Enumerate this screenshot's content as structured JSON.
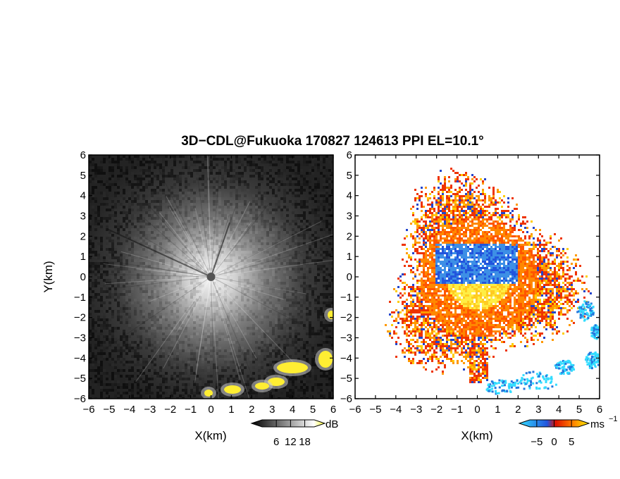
{
  "chart_data": {
    "title": "3D−CDL@Fukuoka 170827 124613 PPI EL=10.1°",
    "panels": [
      {
        "id": "reflectivity",
        "type": "heatmap",
        "xlabel": "X(km)",
        "ylabel": "Y(km)",
        "xlim": [
          -6,
          6
        ],
        "ylim": [
          -6,
          6
        ],
        "xticks": [
          "−6",
          "−5",
          "−4",
          "−3",
          "−2",
          "−1",
          "0",
          "1",
          "2",
          "3",
          "4",
          "5",
          "6"
        ],
        "yticks": [
          "6",
          "5",
          "4",
          "3",
          "2",
          "1",
          "0",
          "−1",
          "−2",
          "−3",
          "−4",
          "−5",
          "−6"
        ],
        "colormap": "grayscale-to-yellow",
        "colorbar": {
          "unit": "dB",
          "ticks": [
            "6",
            "12",
            "18"
          ],
          "tick_values": [
            6,
            12,
            18
          ],
          "range": [
            0,
            22
          ],
          "colors": [
            "#000000",
            "#ffffff",
            "#ffff33"
          ]
        }
      },
      {
        "id": "velocity",
        "type": "heatmap",
        "xlabel": "X(km)",
        "ylabel": "",
        "xlim": [
          -6,
          6
        ],
        "ylim": [
          -6,
          6
        ],
        "xticks": [
          "−6",
          "−5",
          "−4",
          "−3",
          "−2",
          "−1",
          "0",
          "1",
          "2",
          "3",
          "4",
          "5",
          "6"
        ],
        "yticks": [
          "6",
          "5",
          "4",
          "3",
          "2",
          "1",
          "0",
          "−1",
          "−2",
          "−3",
          "−4",
          "−5",
          "−6"
        ],
        "colormap": "cyan-blue-red-yellow",
        "colorbar": {
          "unit": "ms",
          "unit_exp": "−1",
          "ticks": [
            "−5",
            "0",
            "5"
          ],
          "tick_values": [
            -5,
            0,
            5
          ],
          "range": [
            -7,
            7
          ],
          "colors": [
            "#33ddff",
            "#2255dd",
            "#dd1100",
            "#ff7700",
            "#ffee00"
          ]
        }
      }
    ]
  }
}
